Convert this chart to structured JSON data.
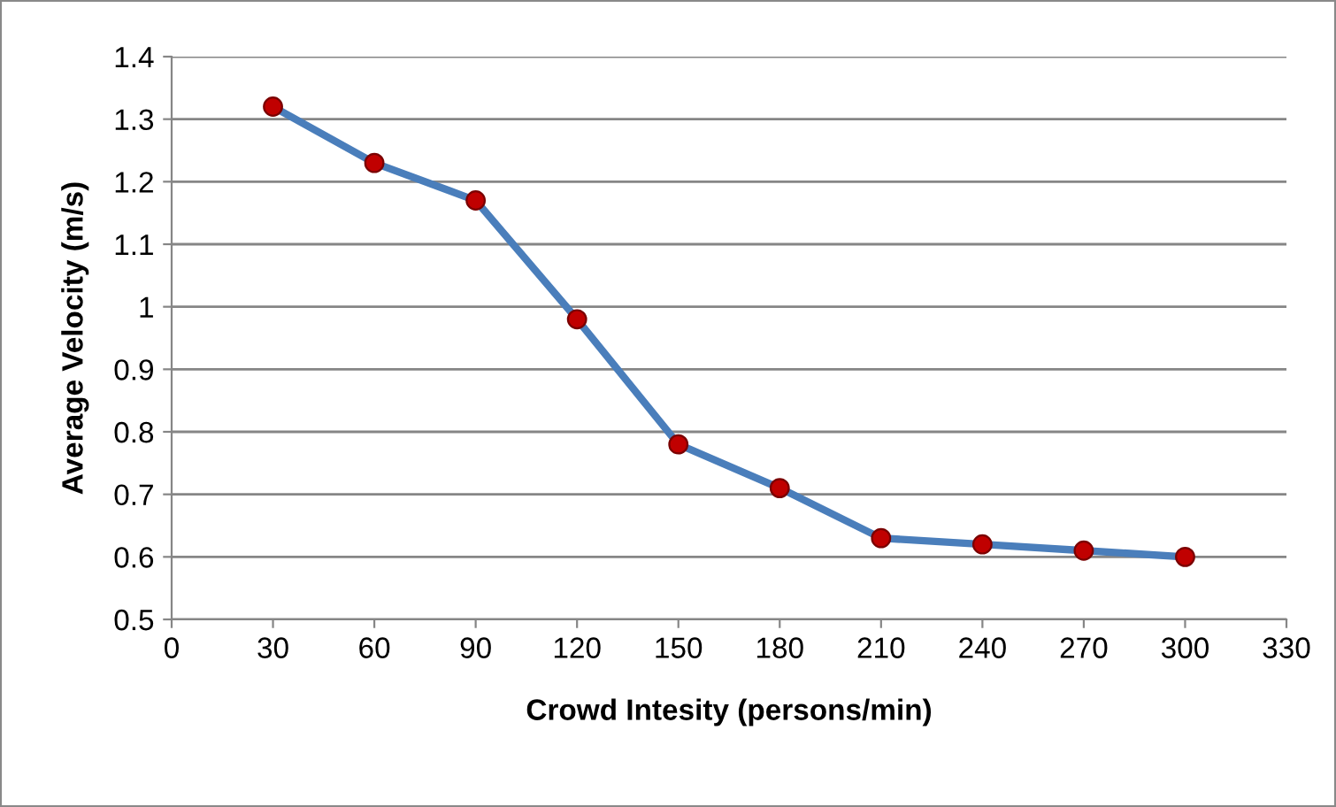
{
  "chart_data": {
    "type": "line",
    "xlabel": "Crowd Intesity (persons/min)",
    "ylabel": "Average Velocity (m/s)",
    "x": [
      30,
      60,
      90,
      120,
      150,
      180,
      210,
      240,
      270,
      300
    ],
    "series": [
      {
        "color": "#4a7ebb",
        "colors": [
          "#c00000",
          "#c00000",
          "#c00000",
          "#c00000",
          "#c00000",
          "#c00000",
          "#c00000",
          "#c00000",
          "#c00000",
          "#c00000"
        ],
        "values": [
          1.32,
          1.23,
          1.17,
          0.98,
          0.78,
          0.71,
          0.63,
          0.62,
          0.61,
          0.6
        ]
      }
    ],
    "xlim": [
      0,
      330
    ],
    "xticks": [
      0,
      30,
      60,
      90,
      120,
      150,
      180,
      210,
      240,
      270,
      300,
      330
    ],
    "ylim": [
      0.5,
      1.4
    ],
    "yticks": [
      0.5,
      0.6,
      0.7,
      0.8,
      0.9,
      1,
      1.1,
      1.2,
      1.3,
      1.4
    ],
    "grid": "y",
    "marker": "circle",
    "line_style": "solid",
    "legend": false
  }
}
